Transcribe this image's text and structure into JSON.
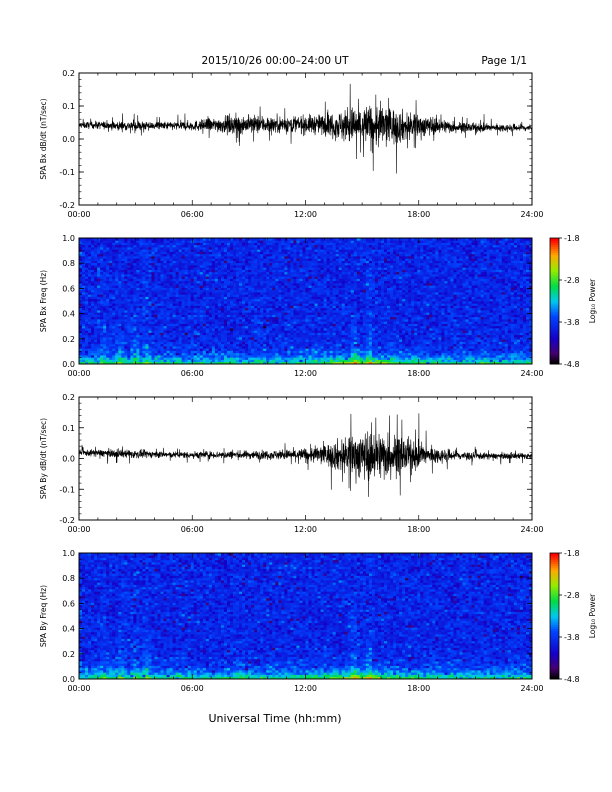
{
  "header": {
    "title": "2015/10/26  00:00–24:00 UT",
    "page": "Page 1/1"
  },
  "chart_data": [
    {
      "type": "line",
      "ylabel": "SPA Bx dB/dt (nT/sec)",
      "ylim": [
        -0.2,
        0.2
      ],
      "yticks": [
        "0.2",
        "0.1",
        "0.0",
        "-0.1",
        "-0.2"
      ],
      "xlim": [
        0,
        24
      ],
      "xticks": [
        "00:00",
        "06:00",
        "12:00",
        "18:00",
        "24:00"
      ],
      "series": [
        {
          "x": [
            0,
            1,
            2,
            3,
            4,
            5,
            6,
            7,
            8,
            9,
            10,
            11,
            12,
            13,
            14,
            15,
            16,
            17,
            18,
            19,
            20,
            21,
            22,
            23,
            24
          ],
          "mean": [
            0.042,
            0.042,
            0.04,
            0.04,
            0.04,
            0.04,
            0.04,
            0.042,
            0.044,
            0.044,
            0.044,
            0.044,
            0.044,
            0.044,
            0.04,
            0.04,
            0.04,
            0.038,
            0.04,
            0.04,
            0.036,
            0.034,
            0.034,
            0.034,
            0.034
          ],
          "amplitude": [
            0.012,
            0.014,
            0.016,
            0.018,
            0.014,
            0.016,
            0.018,
            0.024,
            0.034,
            0.034,
            0.032,
            0.032,
            0.034,
            0.038,
            0.06,
            0.078,
            0.085,
            0.06,
            0.044,
            0.03,
            0.02,
            0.016,
            0.014,
            0.014,
            0.014
          ]
        }
      ]
    },
    {
      "type": "heatmap",
      "ylabel": "SPA Bx Freq (Hz)",
      "ylim": [
        0.0,
        1.0
      ],
      "yticks": [
        "1.0",
        "0.8",
        "0.6",
        "0.4",
        "0.2",
        "0.0"
      ],
      "xlim": [
        0,
        24
      ],
      "xticks": [
        "00:00",
        "06:00",
        "12:00",
        "18:00",
        "24:00"
      ],
      "colorbar": {
        "label": "Log₁₀ Power",
        "range": [
          -4.8,
          -1.8
        ],
        "ticks": [
          "-1.8",
          "-2.8",
          "-3.8",
          "-4.8"
        ]
      }
    },
    {
      "type": "line",
      "ylabel": "SPA By dB/dt (nT/sec)",
      "ylim": [
        -0.2,
        0.2
      ],
      "yticks": [
        "0.2",
        "0.1",
        "0.0",
        "-0.1",
        "-0.2"
      ],
      "xlim": [
        0,
        24
      ],
      "xticks": [
        "00:00",
        "06:00",
        "12:00",
        "18:00",
        "24:00"
      ],
      "series": [
        {
          "x": [
            0,
            1,
            2,
            3,
            4,
            5,
            6,
            7,
            8,
            9,
            10,
            11,
            12,
            13,
            14,
            15,
            16,
            17,
            18,
            19,
            20,
            21,
            22,
            23,
            24
          ],
          "mean": [
            0.018,
            0.018,
            0.016,
            0.014,
            0.014,
            0.012,
            0.012,
            0.012,
            0.012,
            0.012,
            0.012,
            0.012,
            0.012,
            0.012,
            0.01,
            0.01,
            0.01,
            0.01,
            0.01,
            0.01,
            0.01,
            0.008,
            0.008,
            0.008,
            0.008
          ],
          "amplitude": [
            0.012,
            0.014,
            0.016,
            0.016,
            0.014,
            0.012,
            0.014,
            0.014,
            0.016,
            0.016,
            0.018,
            0.02,
            0.028,
            0.04,
            0.07,
            0.095,
            0.1,
            0.075,
            0.05,
            0.03,
            0.02,
            0.014,
            0.012,
            0.012,
            0.012
          ]
        }
      ]
    },
    {
      "type": "heatmap",
      "ylabel": "SPA By Freq (Hz)",
      "ylim": [
        0.0,
        1.0
      ],
      "yticks": [
        "1.0",
        "0.8",
        "0.6",
        "0.4",
        "0.2",
        "0.0"
      ],
      "xlim": [
        0,
        24
      ],
      "xticks": [
        "00:00",
        "06:00",
        "12:00",
        "18:00",
        "24:00"
      ],
      "colorbar": {
        "label": "Log₁₀ Power",
        "range": [
          -4.8,
          -1.8
        ],
        "ticks": [
          "-1.8",
          "-2.8",
          "-3.8",
          "-4.8"
        ]
      }
    }
  ],
  "xlabel": "Universal Time (hh:mm)",
  "colors": {
    "trace": "#000000",
    "frame": "#000000"
  }
}
